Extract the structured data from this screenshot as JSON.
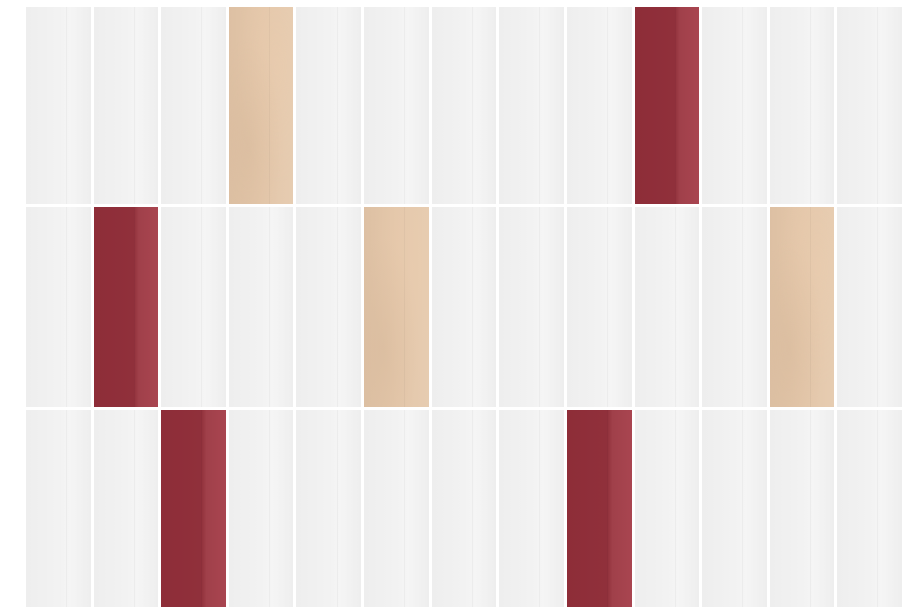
{
  "tile_colors": {
    "W": "#efefef",
    "B": "#e3c6a9",
    "R": "#922f3a"
  },
  "rows": [
    [
      "W",
      "W",
      "W",
      "B",
      "W",
      "W",
      "W",
      "W",
      "W",
      "R",
      "W",
      "W",
      "W"
    ],
    [
      "W",
      "R",
      "W",
      "W",
      "W",
      "B",
      "W",
      "W",
      "W",
      "W",
      "W",
      "B",
      "W"
    ],
    [
      "W",
      "W",
      "R",
      "W",
      "W",
      "W",
      "W",
      "W",
      "R",
      "W",
      "W",
      "W",
      "W"
    ]
  ]
}
